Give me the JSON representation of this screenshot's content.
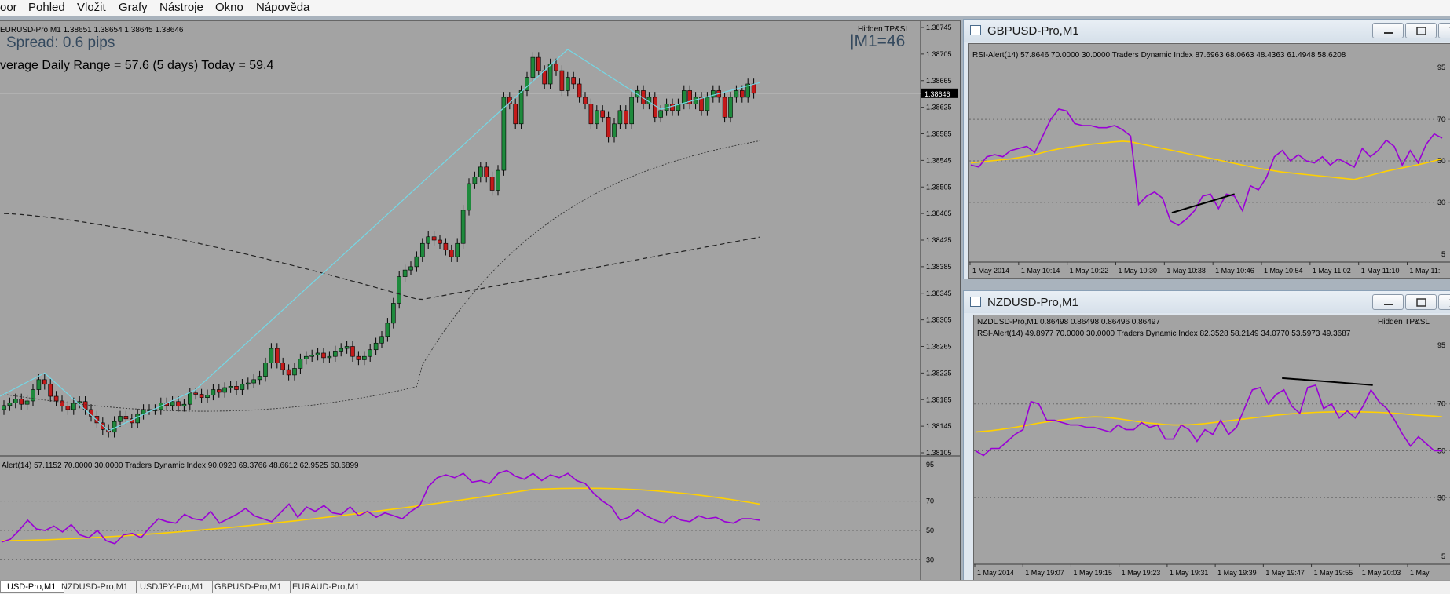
{
  "menu": {
    "items": [
      "oor",
      "Pohled",
      "Vložit",
      "Grafy",
      "Nástroje",
      "Okno",
      "Nápověda"
    ]
  },
  "main_chart": {
    "header": "EURUSD-Pro,M1  1.38651 1.38654 1.38645 1.38646",
    "spread": "Spread: 0.6 pips",
    "adr": "verage Daily Range = 57.6 (5 days)   Today = 59.4",
    "timer": "|M1=46",
    "hidden_label": "Hidden TP&SL",
    "current_price": "1.38646",
    "price_axis": [
      "1.38745",
      "1.38705",
      "1.38665",
      "1.38625",
      "1.38585",
      "1.38545",
      "1.38505",
      "1.38465",
      "1.38425",
      "1.38385",
      "1.38345",
      "1.38305",
      "1.38265",
      "1.38225",
      "1.38185",
      "1.38145",
      "1.38105"
    ],
    "indicator_header": "Alert(14) 57.1152 70.0000 30.0000  Traders Dynamic Index 90.0920 69.3766 48.6612 62.9525 60.6899",
    "indicator_axis": [
      "95",
      "70",
      "50",
      "30"
    ],
    "colors": {
      "rsi": "#9a00d6",
      "signal": "#ffd000",
      "zigzag": "#74d8e6",
      "bull": "#1e8a3c",
      "bear": "#c41a1a"
    }
  },
  "gbp_window": {
    "title": "GBPUSD-Pro,M1",
    "indicator_header": "RSI-Alert(14) 57.8646 70.0000 30.0000  Traders Dynamic Index 87.6963 68.0663 48.4363 61.4948 58.6208",
    "axis": [
      "95",
      "70",
      "50",
      "30",
      "5"
    ],
    "times": [
      "1 May 2014",
      "1 May 10:14",
      "1 May 10:22",
      "1 May 10:30",
      "1 May 10:38",
      "1 May 10:46",
      "1 May 10:54",
      "1 May 11:02",
      "1 May 11:10",
      "1 May 11:"
    ],
    "rsi": [
      48,
      47,
      52,
      53,
      52,
      55,
      56,
      57,
      54,
      62,
      70,
      75,
      74,
      68,
      67,
      67,
      66,
      66,
      67,
      65,
      62,
      29,
      33,
      35,
      32,
      21,
      19,
      22,
      26,
      33,
      34,
      27,
      34,
      33,
      26,
      38,
      36,
      42,
      52,
      55,
      50,
      53,
      50,
      49,
      52,
      48,
      51,
      49,
      47,
      56,
      52,
      55,
      60,
      57,
      48,
      55,
      49,
      58,
      63,
      61
    ],
    "signal": [
      49,
      49.4,
      49.8,
      50.2,
      50.6,
      51,
      51.6,
      52.2,
      53,
      54,
      55,
      55.8,
      56.4,
      57,
      57.5,
      58,
      58.4,
      58.8,
      59.2,
      59.5,
      59.2,
      58.4,
      57.6,
      56.8,
      56,
      55.2,
      54.4,
      53.6,
      52.8,
      52,
      51.2,
      50.4,
      49.6,
      48.8,
      48,
      47.2,
      46.4,
      45.8,
      45.2,
      44.6,
      44.2,
      43.8,
      43.4,
      43,
      42.6,
      42.2,
      41.8,
      41.4,
      41,
      42,
      43,
      44,
      45,
      45.8,
      46.6,
      47.4,
      48.2,
      49,
      50,
      51
    ],
    "trendline": [
      [
        0.42,
        25
      ],
      [
        0.55,
        34
      ]
    ]
  },
  "nzd_window": {
    "title": "NZDUSD-Pro,M1",
    "header": "NZDUSD-Pro,M1  0.86498 0.86498 0.86496 0.86497",
    "hidden_label": "Hidden TP&SL",
    "indicator_header": "RSI-Alert(14) 49.8977 70.0000 30.0000  Traders Dynamic Index 82.3528 58.2149 34.0770 53.5973 49.3687",
    "axis": [
      "95",
      "70",
      "50",
      "30",
      "5"
    ],
    "times": [
      "1 May 2014",
      "1 May 19:07",
      "1 May 19:15",
      "1 May 19:23",
      "1 May 19:31",
      "1 May 19:39",
      "1 May 19:47",
      "1 May 19:55",
      "1 May 20:03",
      "1 May"
    ],
    "rsi": [
      50,
      48,
      51,
      51,
      54,
      57,
      59,
      71,
      70,
      63,
      63,
      62,
      61,
      61,
      60,
      60,
      59,
      58,
      61,
      59,
      59,
      62,
      60,
      61,
      55,
      55,
      61,
      59,
      54,
      59,
      57,
      63,
      57,
      60,
      68,
      76,
      77,
      70,
      74,
      76,
      69,
      66,
      77,
      78,
      68,
      70,
      64,
      67,
      64,
      69,
      76,
      71,
      68,
      63,
      57,
      52,
      56,
      53,
      50,
      50
    ],
    "signal": [
      58,
      58.3,
      58.6,
      59,
      59.5,
      60,
      60.6,
      61.2,
      61.8,
      62.3,
      62.8,
      63.2,
      63.6,
      64,
      64.3,
      64.5,
      64.4,
      64.1,
      63.7,
      63.2,
      62.7,
      62.2,
      61.8,
      61.5,
      61.2,
      61,
      61,
      61.1,
      61.3,
      61.6,
      62,
      62.4,
      62.8,
      63.2,
      63.6,
      64,
      64.4,
      64.8,
      65.2,
      65.5,
      65.8,
      66,
      66.2,
      66.4,
      66.5,
      66.6,
      66.7,
      66.7,
      66.7,
      66.6,
      66.5,
      66.4,
      66.2,
      66,
      65.8,
      65.5,
      65.2,
      65,
      64.8,
      64.5
    ],
    "trendline": [
      [
        0.645,
        81
      ],
      [
        0.835,
        78
      ]
    ]
  },
  "tabs": [
    "USD-Pro,M1",
    "NZDUSD-Pro,M1",
    "USDJPY-Pro,M1",
    "GBPUSD-Pro,M1",
    "EURAUD-Pro,M1"
  ]
}
